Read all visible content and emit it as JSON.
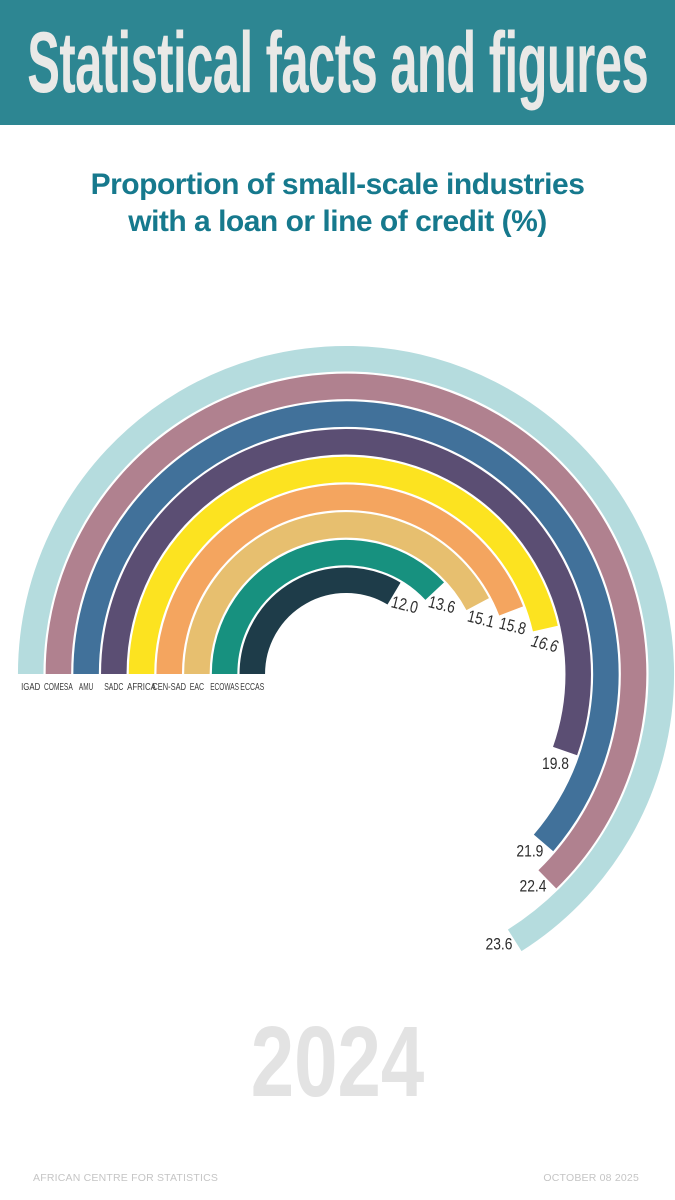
{
  "header": {
    "title": "Statistical facts and figures"
  },
  "subtitle": {
    "line1": "Proportion of small-scale industries",
    "line2": "with a loan or line of credit (%)"
  },
  "chart_data": {
    "type": "radial-bar",
    "title": "Proportion of small-scale industries with a loan or line of credit (%)",
    "unit": "%",
    "order": "outermost-to-innermost",
    "categories": [
      "IGAD",
      "COMESA",
      "AMU",
      "SADC",
      "AFRICA",
      "CEN-SAD",
      "EAC",
      "ECOWAS",
      "ECCAS"
    ],
    "values": [
      23.6,
      22.4,
      21.9,
      19.8,
      16.6,
      15.8,
      15.1,
      13.6,
      12.0
    ],
    "colors": [
      "#b5dcde",
      "#b0818f",
      "#41719a",
      "#5b4e73",
      "#fce320",
      "#f4a55f",
      "#e7bf6f",
      "#17917f",
      "#1e3c49"
    ],
    "start_angle_deg": 180,
    "sweep_direction": "clockwise",
    "degrees_per_unit": 10.07,
    "emphasized_category": "AFRICA",
    "value_label_format": "one-decimal"
  },
  "year_watermark": "2024",
  "footer": {
    "left": "AFRICAN CENTRE FOR STATISTICS",
    "right": "OCTOBER 08 2025"
  },
  "theme": {
    "background": "#ffffff",
    "header_bg": "#2d8692",
    "header_text": "#e9e9e7",
    "subtitle": "#16798d",
    "category_label": "#3b3b3b",
    "value_label": "#2d2d2d",
    "year": "#e3e3e3",
    "footer": "#c5c5c5"
  }
}
